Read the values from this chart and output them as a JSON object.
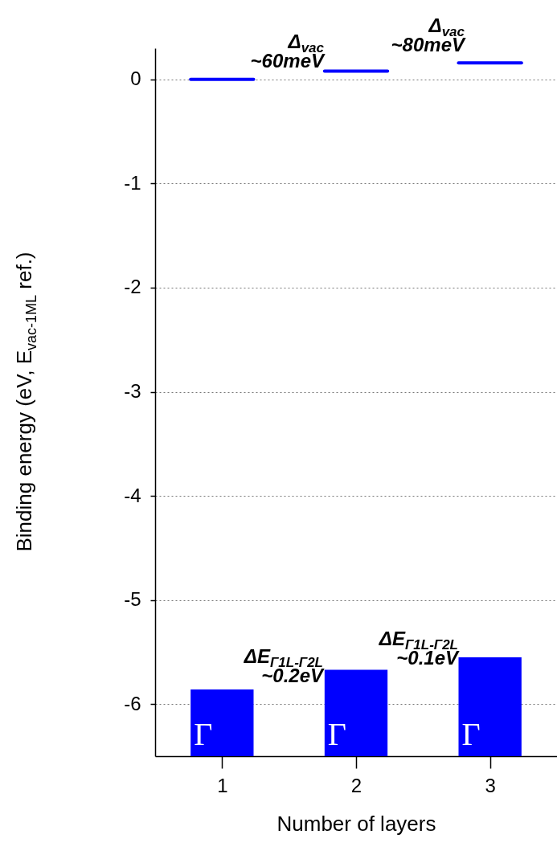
{
  "chart_data": {
    "type": "bar",
    "xlabel": "Number of layers",
    "ylabel": "Binding energy (eV, E$_{vac-1ML}$ ref.)",
    "x": [
      1,
      2,
      3
    ],
    "series": [
      {
        "color": "#0000ff",
        "base": [
          -6.5,
          -6.5,
          -6.5
        ],
        "values": [
          0.64,
          0.83,
          0.95
        ],
        "value_labels": [
          "Γ",
          "Γ",
          "Γ"
        ]
      },
      {
        "type": "line",
        "color": "#0000ff",
        "x": [
          0.765,
          1.235
        ],
        "values": [
          0,
          0
        ]
      },
      {
        "type": "line",
        "color": "#0000ff",
        "x": [
          1.765,
          2.235
        ],
        "values": [
          0.08,
          0.08
        ]
      },
      {
        "type": "line",
        "color": "#0000ff",
        "x": [
          2.765,
          3.235
        ],
        "values": [
          0.16,
          0.16
        ]
      }
    ],
    "xlim": [
      0.5,
      3.5
    ],
    "xticks": [
      1,
      2,
      3
    ],
    "ylim": [
      -6.5,
      0.3
    ],
    "yticks": [
      -6,
      -5,
      -4,
      -3,
      -2,
      -1,
      0
    ],
    "grid": "y",
    "annotations": [
      "Δ$_{vac}$\n~60meV",
      "Δ$_{vac}$\n~80meV",
      "ΔE$_{Γ1L-Γ2L}$\n~0.2eV",
      "ΔE$_{Γ1L-Γ2L}$\n~0.1eV"
    ]
  }
}
